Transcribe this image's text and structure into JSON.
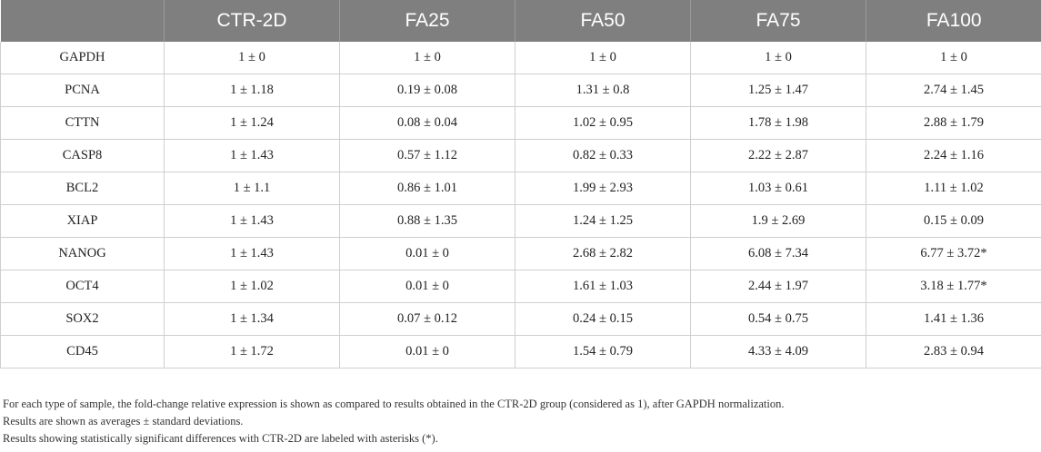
{
  "table": {
    "headers": [
      "",
      "CTR-2D",
      "FA25",
      "FA50",
      "FA75",
      "FA100"
    ],
    "rows": [
      [
        "GAPDH",
        "1 ± 0",
        "1 ± 0",
        "1 ± 0",
        "1 ± 0",
        "1 ± 0"
      ],
      [
        "PCNA",
        "1 ± 1.18",
        "0.19 ± 0.08",
        "1.31 ± 0.8",
        "1.25 ± 1.47",
        "2.74 ± 1.45"
      ],
      [
        "CTTN",
        "1 ± 1.24",
        "0.08 ± 0.04",
        "1.02 ± 0.95",
        "1.78 ± 1.98",
        "2.88 ± 1.79"
      ],
      [
        "CASP8",
        "1 ± 1.43",
        "0.57 ± 1.12",
        "0.82 ± 0.33",
        "2.22 ± 2.87",
        "2.24 ± 1.16"
      ],
      [
        "BCL2",
        "1 ± 1.1",
        "0.86 ± 1.01",
        "1.99 ± 2.93",
        "1.03 ± 0.61",
        "1.11 ± 1.02"
      ],
      [
        "XIAP",
        "1 ± 1.43",
        "0.88 ± 1.35",
        "1.24 ± 1.25",
        "1.9 ± 2.69",
        "0.15 ± 0.09"
      ],
      [
        "NANOG",
        "1 ± 1.43",
        "0.01 ± 0",
        "2.68 ± 2.82",
        "6.08 ± 7.34",
        "6.77 ± 3.72*"
      ],
      [
        "OCT4",
        "1 ± 1.02",
        "0.01 ± 0",
        "1.61 ± 1.03",
        "2.44 ± 1.97",
        "3.18 ± 1.77*"
      ],
      [
        "SOX2",
        "1 ± 1.34",
        "0.07 ± 0.12",
        "0.24 ± 0.15",
        "0.54 ± 0.75",
        "1.41 ± 1.36"
      ],
      [
        "CD45",
        "1 ± 1.72",
        "0.01 ± 0",
        "1.54 ± 0.79",
        "4.33 ± 4.09",
        "2.83 ± 0.94"
      ]
    ]
  },
  "footnotes": [
    "For each type of sample, the fold-change relative expression is shown as compared to results obtained in the CTR-2D group (considered as 1), after GAPDH normalization.",
    "Results are shown as averages ± standard deviations.",
    "Results showing statistically significant differences with CTR-2D are labeled with asterisks (*)."
  ],
  "colors": {
    "header_bg": "#7f7f7f",
    "header_text": "#ffffff",
    "grid": "#cfcfcf"
  }
}
